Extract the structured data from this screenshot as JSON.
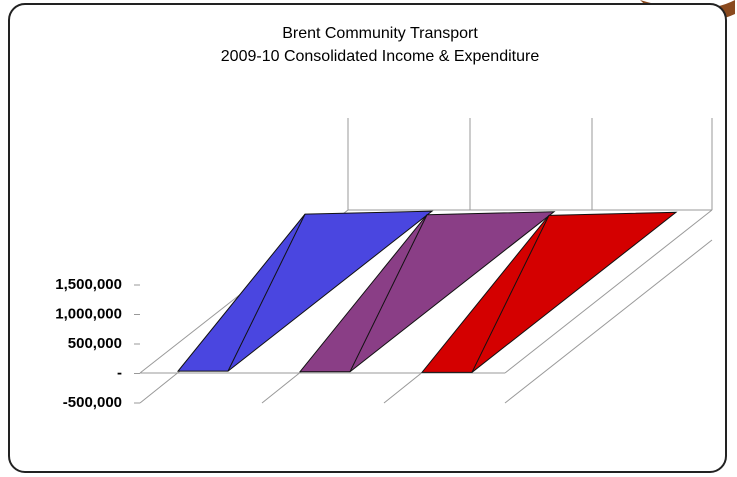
{
  "chart_data": {
    "type": "area3d",
    "title": "Brent Community Transport",
    "subtitle": "2009-10 Consolidated Income & Expenditure",
    "series": [
      {
        "color": "#4a46e0",
        "values": [
          40000
        ]
      },
      {
        "color": "#8a3e86",
        "values": [
          30000
        ]
      },
      {
        "color": "#d40000",
        "values": [
          20000
        ]
      }
    ],
    "ylim": [
      -500000,
      1500000
    ],
    "yticks": [
      {
        "value": 1500000,
        "label": "1,500,000"
      },
      {
        "value": 1000000,
        "label": "1,000,000"
      },
      {
        "value": 500000,
        "label": "500,000"
      },
      {
        "value": 0,
        "label": "-"
      },
      {
        "value": -500000,
        "label": "-500,000"
      }
    ]
  }
}
